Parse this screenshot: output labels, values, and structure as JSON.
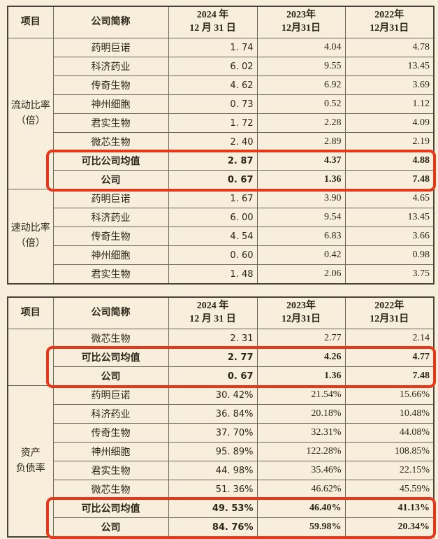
{
  "page": {
    "background_color": "#f7efdc",
    "text_color": "#2b2619",
    "border_color": "#6b675a",
    "highlight_color": "#e6391b"
  },
  "columns": {
    "item": "项目",
    "company": "公司简称",
    "y2024": "2024 年\n12 月 31 日",
    "y2023": "2023年\n12月31日",
    "y2022": "2022年\n12月31日"
  },
  "tables": [
    {
      "name": "liquidity-and-quick-ratio-table",
      "sections": [
        {
          "item": "流动比率\n（倍）",
          "rows": [
            {
              "company": "药明巨诺",
              "y2024": "1. 74",
              "y2023": "4.04",
              "y2022": "4.78"
            },
            {
              "company": "科济药业",
              "y2024": "6. 02",
              "y2023": "9.55",
              "y2022": "13.45"
            },
            {
              "company": "传奇生物",
              "y2024": "4. 62",
              "y2023": "6.92",
              "y2022": "3.69"
            },
            {
              "company": "神州细胞",
              "y2024": "0. 73",
              "y2023": "0.52",
              "y2022": "1.12"
            },
            {
              "company": "君实生物",
              "y2024": "1. 72",
              "y2023": "2.28",
              "y2022": "4.09"
            },
            {
              "company": "微芯生物",
              "y2024": "2. 40",
              "y2023": "2.89",
              "y2022": "2.19"
            },
            {
              "company": "可比公司均值",
              "y2024": "2. 87",
              "y2023": "4.37",
              "y2022": "4.88",
              "bold": true,
              "highlight": "box1"
            },
            {
              "company": "公司",
              "y2024": "0. 67",
              "y2023": "1.36",
              "y2022": "7.48",
              "bold": true,
              "highlight": "box1"
            }
          ]
        },
        {
          "item": "速动比率\n（倍）",
          "rows": [
            {
              "company": "药明巨诺",
              "y2024": "1. 67",
              "y2023": "3.90",
              "y2022": "4.65"
            },
            {
              "company": "科济药业",
              "y2024": "6. 00",
              "y2023": "9.54",
              "y2022": "13.45"
            },
            {
              "company": "传奇生物",
              "y2024": "4. 54",
              "y2023": "6.83",
              "y2022": "3.66"
            },
            {
              "company": "神州细胞",
              "y2024": "0. 60",
              "y2023": "0.42",
              "y2022": "0.98"
            },
            {
              "company": "君实生物",
              "y2024": "1. 48",
              "y2023": "2.06",
              "y2022": "3.75"
            }
          ]
        }
      ]
    },
    {
      "name": "debt-ratio-table",
      "sections": [
        {
          "item": "",
          "rows": [
            {
              "company": "微芯生物",
              "y2024": "2. 31",
              "y2023": "2.77",
              "y2022": "2.14"
            },
            {
              "company": "可比公司均值",
              "y2024": "2. 77",
              "y2023": "4.26",
              "y2022": "4.77",
              "bold": true,
              "highlight": "box2"
            },
            {
              "company": "公司",
              "y2024": "0. 67",
              "y2023": "1.36",
              "y2022": "7.48",
              "bold": true,
              "highlight": "box2"
            }
          ]
        },
        {
          "item": "资产\n负债率",
          "rows": [
            {
              "company": "药明巨诺",
              "y2024": "30. 42%",
              "y2023": "21.54%",
              "y2022": "15.66%"
            },
            {
              "company": "科济药业",
              "y2024": "36. 84%",
              "y2023": "20.18%",
              "y2022": "10.48%"
            },
            {
              "company": "传奇生物",
              "y2024": "37. 70%",
              "y2023": "32.31%",
              "y2022": "44.08%"
            },
            {
              "company": "神州细胞",
              "y2024": "95. 89%",
              "y2023": "122.28%",
              "y2022": "108.85%"
            },
            {
              "company": "君实生物",
              "y2024": "44. 98%",
              "y2023": "35.46%",
              "y2022": "22.15%"
            },
            {
              "company": "微芯生物",
              "y2024": "51. 36%",
              "y2023": "46.62%",
              "y2022": "45.59%"
            },
            {
              "company": "可比公司均值",
              "y2024": "49. 53%",
              "y2023": "46.40%",
              "y2022": "41.13%",
              "bold": true,
              "highlight": "box3"
            },
            {
              "company": "公司",
              "y2024": "84. 76%",
              "y2023": "59.98%",
              "y2022": "20.34%",
              "bold": true,
              "highlight": "box3"
            }
          ]
        }
      ]
    }
  ]
}
